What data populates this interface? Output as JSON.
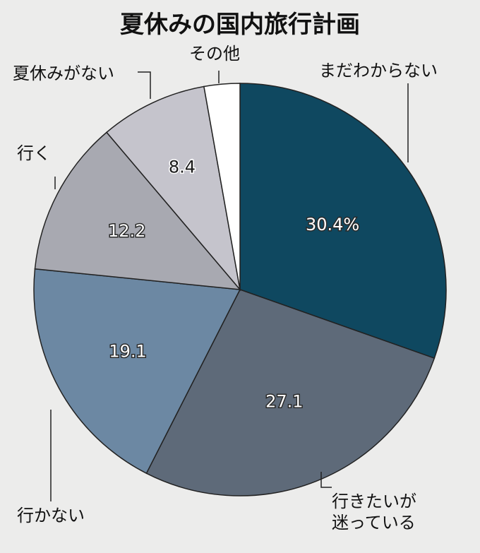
{
  "chart_data": {
    "type": "pie",
    "title": "夏休みの国内旅行計画",
    "slices": [
      {
        "label": "まだわからない",
        "value": 30.4,
        "value_label": "30.4%",
        "color": "#0f4860"
      },
      {
        "label": "行きたいが迷っている",
        "label_lines": [
          "行きたいが",
          "迷っている"
        ],
        "value": 27.1,
        "value_label": "27.1",
        "color": "#5e6a79"
      },
      {
        "label": "行かない",
        "value": 19.1,
        "value_label": "19.1",
        "color": "#6c88a3"
      },
      {
        "label": "行く",
        "value": 12.2,
        "value_label": "12.2",
        "color": "#a8a9b1"
      },
      {
        "label": "夏休みがない",
        "value": 8.4,
        "value_label": "8.4",
        "color": "#c5c4cc"
      },
      {
        "label": "その他",
        "value": 2.8,
        "value_label": "",
        "color": "#ffffff"
      }
    ],
    "start_angle_deg": 0,
    "direction": "clockwise",
    "legend": "none"
  }
}
